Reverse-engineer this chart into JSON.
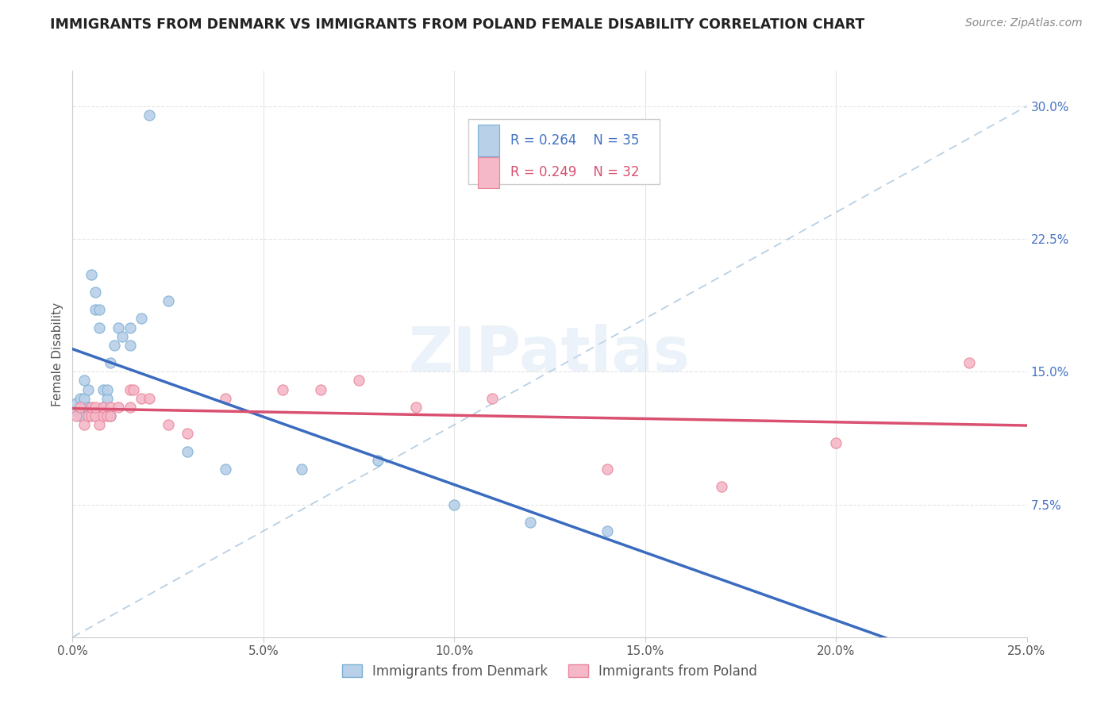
{
  "title": "IMMIGRANTS FROM DENMARK VS IMMIGRANTS FROM POLAND FEMALE DISABILITY CORRELATION CHART",
  "source_text": "Source: ZipAtlas.com",
  "ylabel": "Female Disability",
  "xlim": [
    0.0,
    0.25
  ],
  "ylim": [
    0.0,
    0.32
  ],
  "x_ticks": [
    0.0,
    0.05,
    0.1,
    0.15,
    0.2,
    0.25
  ],
  "x_tick_labels": [
    "0.0%",
    "5.0%",
    "10.0%",
    "15.0%",
    "20.0%",
    "25.0%"
  ],
  "y_ticks": [
    0.075,
    0.15,
    0.225,
    0.3
  ],
  "y_tick_labels": [
    "7.5%",
    "15.0%",
    "22.5%",
    "30.0%"
  ],
  "legend_r1": "R = 0.264",
  "legend_n1": "N = 35",
  "legend_r2": "R = 0.249",
  "legend_n2": "N = 32",
  "legend_label1": "Immigrants from Denmark",
  "legend_label2": "Immigrants from Poland",
  "color_denmark": "#b8d0e8",
  "color_poland": "#f5b8c8",
  "edge_denmark": "#7bafd4",
  "edge_poland": "#e8849a",
  "trendline_color_denmark": "#3a6bbf",
  "trendline_color_poland": "#d95070",
  "diagonal_color": "#9bbcd8",
  "watermark_color": "#cde0f0",
  "watermark": "ZIPatlas",
  "background_color": "#ffffff",
  "grid_color": "#e5e5e5",
  "denmark_x": [
    0.001,
    0.001,
    0.002,
    0.002,
    0.003,
    0.003,
    0.003,
    0.004,
    0.004,
    0.005,
    0.006,
    0.006,
    0.007,
    0.007,
    0.008,
    0.008,
    0.009,
    0.009,
    0.01,
    0.01,
    0.011,
    0.012,
    0.013,
    0.015,
    0.015,
    0.018,
    0.02,
    0.025,
    0.03,
    0.04,
    0.06,
    0.08,
    0.1,
    0.12,
    0.14
  ],
  "denmark_y": [
    0.128,
    0.132,
    0.125,
    0.135,
    0.13,
    0.135,
    0.145,
    0.13,
    0.14,
    0.205,
    0.185,
    0.195,
    0.175,
    0.185,
    0.13,
    0.14,
    0.135,
    0.14,
    0.125,
    0.155,
    0.165,
    0.175,
    0.17,
    0.165,
    0.175,
    0.18,
    0.295,
    0.19,
    0.105,
    0.095,
    0.095,
    0.1,
    0.075,
    0.065,
    0.06
  ],
  "poland_x": [
    0.001,
    0.002,
    0.003,
    0.004,
    0.005,
    0.005,
    0.006,
    0.006,
    0.007,
    0.008,
    0.008,
    0.009,
    0.01,
    0.01,
    0.012,
    0.015,
    0.015,
    0.016,
    0.018,
    0.02,
    0.025,
    0.03,
    0.04,
    0.055,
    0.065,
    0.075,
    0.09,
    0.11,
    0.14,
    0.17,
    0.2,
    0.235
  ],
  "poland_y": [
    0.125,
    0.13,
    0.12,
    0.125,
    0.125,
    0.13,
    0.125,
    0.13,
    0.12,
    0.125,
    0.13,
    0.125,
    0.13,
    0.125,
    0.13,
    0.13,
    0.14,
    0.14,
    0.135,
    0.135,
    0.12,
    0.115,
    0.135,
    0.14,
    0.14,
    0.145,
    0.13,
    0.135,
    0.095,
    0.085,
    0.11,
    0.155
  ]
}
